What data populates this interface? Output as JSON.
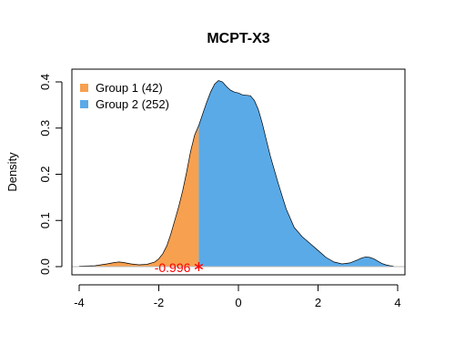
{
  "chart_data": {
    "type": "area",
    "title": "MCPT-X3",
    "xlabel": "",
    "ylabel": "Density",
    "xlim": [
      -4.4,
      4.4
    ],
    "ylim": [
      0,
      0.4
    ],
    "xticks": [
      -4,
      -2,
      0,
      2,
      4
    ],
    "yticks": [
      0.0,
      0.1,
      0.2,
      0.3,
      0.4
    ],
    "ytick_labels": [
      "0.0",
      "0.1",
      "0.2",
      "0.3",
      "0.4"
    ],
    "grid": false,
    "legend_position": "top-left",
    "threshold": {
      "value": -0.996,
      "label": "-0.996",
      "marker": "*",
      "color": "#ff0000"
    },
    "series": [
      {
        "name": "Group 1 (42)",
        "color": "#f7a04f",
        "x_range": [
          -4.0,
          -0.996
        ]
      },
      {
        "name": "Group 2 (252)",
        "color": "#5aaae8",
        "x_range": [
          -0.996,
          3.9
        ]
      }
    ],
    "density": {
      "x": [
        -4.0,
        -3.6,
        -3.3,
        -3.1,
        -3.0,
        -2.9,
        -2.7,
        -2.5,
        -2.3,
        -2.1,
        -2.0,
        -1.9,
        -1.8,
        -1.7,
        -1.6,
        -1.5,
        -1.4,
        -1.3,
        -1.2,
        -1.1,
        -1.0,
        -0.9,
        -0.8,
        -0.7,
        -0.6,
        -0.5,
        -0.4,
        -0.3,
        -0.2,
        -0.1,
        0.0,
        0.1,
        0.2,
        0.3,
        0.4,
        0.5,
        0.6,
        0.7,
        0.8,
        1.0,
        1.2,
        1.4,
        1.6,
        1.8,
        2.0,
        2.2,
        2.4,
        2.6,
        2.8,
        3.0,
        3.1,
        3.2,
        3.3,
        3.4,
        3.5,
        3.6,
        3.7,
        3.8,
        3.9
      ],
      "y": [
        0.001,
        0.002,
        0.006,
        0.009,
        0.01,
        0.009,
        0.006,
        0.004,
        0.005,
        0.01,
        0.017,
        0.028,
        0.045,
        0.07,
        0.1,
        0.13,
        0.165,
        0.205,
        0.25,
        0.285,
        0.305,
        0.33,
        0.355,
        0.378,
        0.395,
        0.403,
        0.4,
        0.39,
        0.382,
        0.378,
        0.376,
        0.372,
        0.371,
        0.37,
        0.36,
        0.34,
        0.31,
        0.275,
        0.24,
        0.18,
        0.125,
        0.085,
        0.065,
        0.05,
        0.035,
        0.02,
        0.01,
        0.006,
        0.008,
        0.015,
        0.019,
        0.021,
        0.02,
        0.017,
        0.012,
        0.007,
        0.004,
        0.002,
        0.001
      ]
    }
  }
}
